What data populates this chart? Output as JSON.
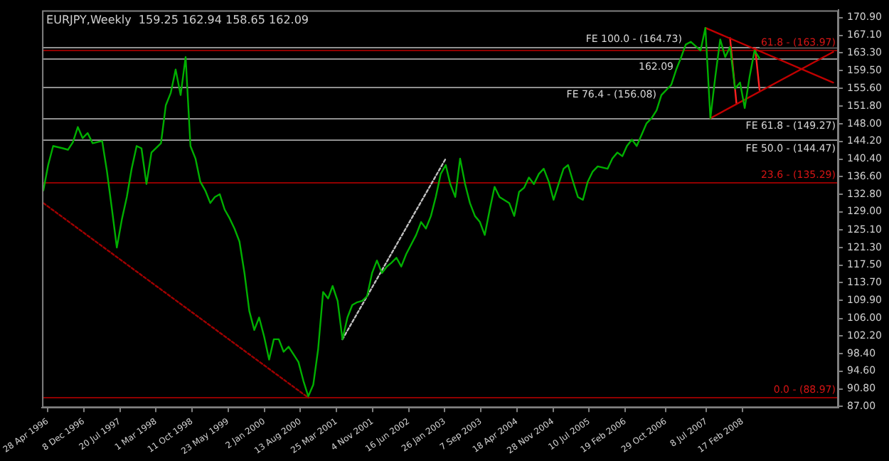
{
  "chart_data": {
    "type": "line",
    "title": "EURJPY,Weekly  159.25 162.94 158.65 162.09",
    "x": [
      "1996-04",
      "1996-05",
      "1996-06",
      "1996-08",
      "1996-09",
      "1996-10",
      "1996-11",
      "1996-12",
      "1997-01",
      "1997-02",
      "1997-04",
      "1997-05",
      "1997-06",
      "1997-07",
      "1997-08",
      "1997-09",
      "1997-10",
      "1997-11",
      "1997-12",
      "1998-01",
      "1998-02",
      "1998-04",
      "1998-05",
      "1998-06",
      "1998-07",
      "1998-08",
      "1998-09",
      "1998-10",
      "1998-11",
      "1998-12",
      "1999-01",
      "1999-02",
      "1999-03",
      "1999-04",
      "1999-05",
      "1999-06",
      "1999-07",
      "1999-08",
      "1999-09",
      "1999-10",
      "1999-11",
      "1999-12",
      "2000-01",
      "2000-02",
      "2000-03",
      "2000-04",
      "2000-05",
      "2000-06",
      "2000-08",
      "2000-09",
      "2000-10",
      "2000-11",
      "2000-12",
      "2001-01",
      "2001-02",
      "2001-03",
      "2001-04",
      "2001-05",
      "2001-06",
      "2001-07",
      "2001-08",
      "2001-09",
      "2001-10",
      "2001-11",
      "2001-12",
      "2002-01",
      "2002-02",
      "2002-03",
      "2002-04",
      "2002-05",
      "2002-06",
      "2002-08",
      "2002-09",
      "2002-10",
      "2002-11",
      "2002-12",
      "2003-01",
      "2003-02",
      "2003-03",
      "2003-04",
      "2003-05",
      "2003-06",
      "2003-07",
      "2003-08",
      "2003-09",
      "2003-10",
      "2003-11",
      "2003-12",
      "2004-01",
      "2004-03",
      "2004-04",
      "2004-05",
      "2004-06",
      "2004-07",
      "2004-08",
      "2004-09",
      "2004-10",
      "2004-11",
      "2004-12",
      "2005-01",
      "2005-02",
      "2005-03",
      "2005-04",
      "2005-05",
      "2005-06",
      "2005-07",
      "2005-08",
      "2005-09",
      "2005-11",
      "2005-12",
      "2006-01",
      "2006-02",
      "2006-03",
      "2006-04",
      "2006-05",
      "2006-07",
      "2006-08",
      "2006-09",
      "2006-10",
      "2006-12",
      "2007-01",
      "2007-02",
      "2007-03",
      "2007-04",
      "2007-06",
      "2007-07",
      "2007-08",
      "2007-09",
      "2007-10",
      "2007-11",
      "2007-12",
      "2008-01",
      "2008-02",
      "2008-03",
      "2008-04",
      "2008-05",
      "2008-06"
    ],
    "series": [
      {
        "color": "#00b000",
        "values": [
          133.6,
          139.1,
          143.2,
          142.7,
          142.4,
          144.0,
          147.3,
          144.9,
          146.0,
          143.8,
          144.3,
          137.7,
          129.5,
          121.3,
          127.3,
          132.2,
          138.3,
          143.2,
          142.7,
          135.0,
          141.8,
          143.8,
          152.0,
          154.7,
          159.7,
          154.2,
          162.4,
          143.2,
          140.5,
          135.5,
          133.6,
          130.9,
          132.2,
          132.8,
          129.5,
          127.6,
          125.4,
          122.6,
          115.8,
          107.6,
          103.5,
          106.2,
          102.1,
          97.1,
          101.5,
          101.5,
          98.8,
          99.9,
          96.6,
          92.5,
          89.2,
          91.7,
          99.3,
          111.7,
          110.3,
          113.0,
          109.8,
          101.5,
          106.2,
          108.9,
          109.5,
          109.8,
          110.8,
          115.8,
          118.5,
          115.8,
          117.2,
          118.0,
          119.1,
          117.2,
          119.9,
          124.0,
          126.8,
          125.4,
          128.1,
          132.2,
          137.2,
          139.1,
          135.0,
          132.2,
          140.5,
          135.0,
          130.9,
          128.1,
          126.8,
          124.0,
          129.5,
          134.4,
          132.2,
          130.9,
          128.1,
          133.3,
          134.2,
          136.4,
          135.0,
          137.2,
          138.3,
          135.5,
          131.6,
          135.0,
          138.3,
          139.1,
          135.5,
          132.2,
          131.6,
          135.5,
          137.7,
          138.8,
          138.3,
          140.5,
          141.8,
          141.0,
          143.2,
          144.6,
          143.2,
          148.1,
          149.2,
          150.9,
          154.2,
          156.4,
          159.7,
          162.4,
          165.1,
          165.7,
          163.8,
          168.7,
          149.2,
          158.3,
          166.2,
          162.4,
          164.6,
          155.6,
          156.9,
          151.4,
          158.3,
          163.8,
          162.1
        ]
      },
      {
        "color": "#a00000",
        "line_style": "dotted",
        "x": [
          "1996-04",
          "2000-10"
        ],
        "values": [
          130.9,
          88.9
        ]
      },
      {
        "color": "#c0c0c0",
        "line_style": "dotted",
        "x": [
          "2001-05",
          "2003-02"
        ],
        "values": [
          101.5,
          140.5
        ]
      },
      {
        "color": "#c00000",
        "x": [
          "2007-07",
          "2009-09"
        ],
        "values": [
          168.7,
          156.9
        ]
      },
      {
        "color": "#c00000",
        "x": [
          "2007-08",
          "2009-09"
        ],
        "values": [
          149.2,
          163.5
        ]
      },
      {
        "color": "#ff2020",
        "x": [
          "2007-12-01",
          "2008-01-10"
        ],
        "values": [
          166.5,
          152.3
        ]
      },
      {
        "color": "#ff2020",
        "x": [
          "2008-05-05",
          "2008-06-01"
        ],
        "values": [
          164.3,
          155.3
        ]
      }
    ],
    "xlim": [
      "1996-03-24",
      "2009-10-04"
    ],
    "xticks": [
      {
        "value": "1996-04-28",
        "label": "28 Apr 1996"
      },
      {
        "value": "1996-12-08",
        "label": "8 Dec 1996"
      },
      {
        "value": "1997-07-20",
        "label": "20 Jul 1997"
      },
      {
        "value": "1998-03-01",
        "label": "1 Mar 1998"
      },
      {
        "value": "1998-10-11",
        "label": "11 Oct 1998"
      },
      {
        "value": "1999-05-23",
        "label": "23 May 1999"
      },
      {
        "value": "2000-01-02",
        "label": "2 Jan 2000"
      },
      {
        "value": "2000-08-13",
        "label": "13 Aug 2000"
      },
      {
        "value": "2001-03-25",
        "label": "25 Mar 2001"
      },
      {
        "value": "2001-11-04",
        "label": "4 Nov 2001"
      },
      {
        "value": "2002-06-16",
        "label": "16 Jun 2002"
      },
      {
        "value": "2003-01-26",
        "label": "26 Jan 2003"
      },
      {
        "value": "2003-09-07",
        "label": "7 Sep 2003"
      },
      {
        "value": "2004-04-18",
        "label": "18 Apr 2004"
      },
      {
        "value": "2004-11-28",
        "label": "28 Nov 2004"
      },
      {
        "value": "2005-07-10",
        "label": "10 Jul 2005"
      },
      {
        "value": "2006-02-19",
        "label": "19 Feb 2006"
      },
      {
        "value": "2006-10-29",
        "label": "29 Oct 2006"
      },
      {
        "value": "2007-07-08",
        "label": "8 Jul 2007"
      },
      {
        "value": "2008-02-17",
        "label": "17 Feb 2008"
      }
    ],
    "ylim": [
      86.7,
      172.5
    ],
    "yticks": [
      {
        "value": 170.9,
        "label": "170.90"
      },
      {
        "value": 167.1,
        "label": "167.10"
      },
      {
        "value": 163.3,
        "label": "163.30"
      },
      {
        "value": 159.5,
        "label": "159.50"
      },
      {
        "value": 155.6,
        "label": "155.60"
      },
      {
        "value": 151.8,
        "label": "151.80"
      },
      {
        "value": 148.0,
        "label": "148.00"
      },
      {
        "value": 144.2,
        "label": "144.20"
      },
      {
        "value": 140.4,
        "label": "140.40"
      },
      {
        "value": 136.6,
        "label": "136.60"
      },
      {
        "value": 132.8,
        "label": "132.80"
      },
      {
        "value": 129.0,
        "label": "129.00"
      },
      {
        "value": 125.1,
        "label": "125.10"
      },
      {
        "value": 121.3,
        "label": "121.30"
      },
      {
        "value": 117.5,
        "label": "117.50"
      },
      {
        "value": 113.7,
        "label": "113.70"
      },
      {
        "value": 109.9,
        "label": "109.90"
      },
      {
        "value": 106.0,
        "label": "106.00"
      },
      {
        "value": 102.2,
        "label": "102.20"
      },
      {
        "value": 98.4,
        "label": "98.40"
      },
      {
        "value": 94.6,
        "label": "94.60"
      },
      {
        "value": 90.8,
        "label": "90.80"
      },
      {
        "value": 87.0,
        "label": "87.00"
      }
    ],
    "ref_lines": [
      {
        "axis": "y",
        "value": 164.73,
        "label": "FE 100.0 - (164.73)",
        "color": "#909090"
      },
      {
        "axis": "y",
        "value": 163.97,
        "label": "61.8 - (163.97)",
        "color": "#900000"
      },
      {
        "axis": "y",
        "value": 162.09,
        "label": "162.09",
        "color": "#909090"
      },
      {
        "axis": "y",
        "value": 156.08,
        "label": "FE 76.4 - (156.08)",
        "color": "#909090"
      },
      {
        "axis": "y",
        "value": 149.27,
        "label": "FE 61.8 - (149.27)",
        "color": "#909090"
      },
      {
        "axis": "y",
        "value": 144.47,
        "label": "FE 50.0 - (144.47)",
        "color": "#909090"
      },
      {
        "axis": "y",
        "value": 135.29,
        "label": "23.6 - (135.29)",
        "color": "#900000"
      },
      {
        "axis": "y",
        "value": 88.97,
        "label": "0.0 - (88.97)",
        "color": "#900000"
      }
    ],
    "grid": false,
    "legend": false
  }
}
